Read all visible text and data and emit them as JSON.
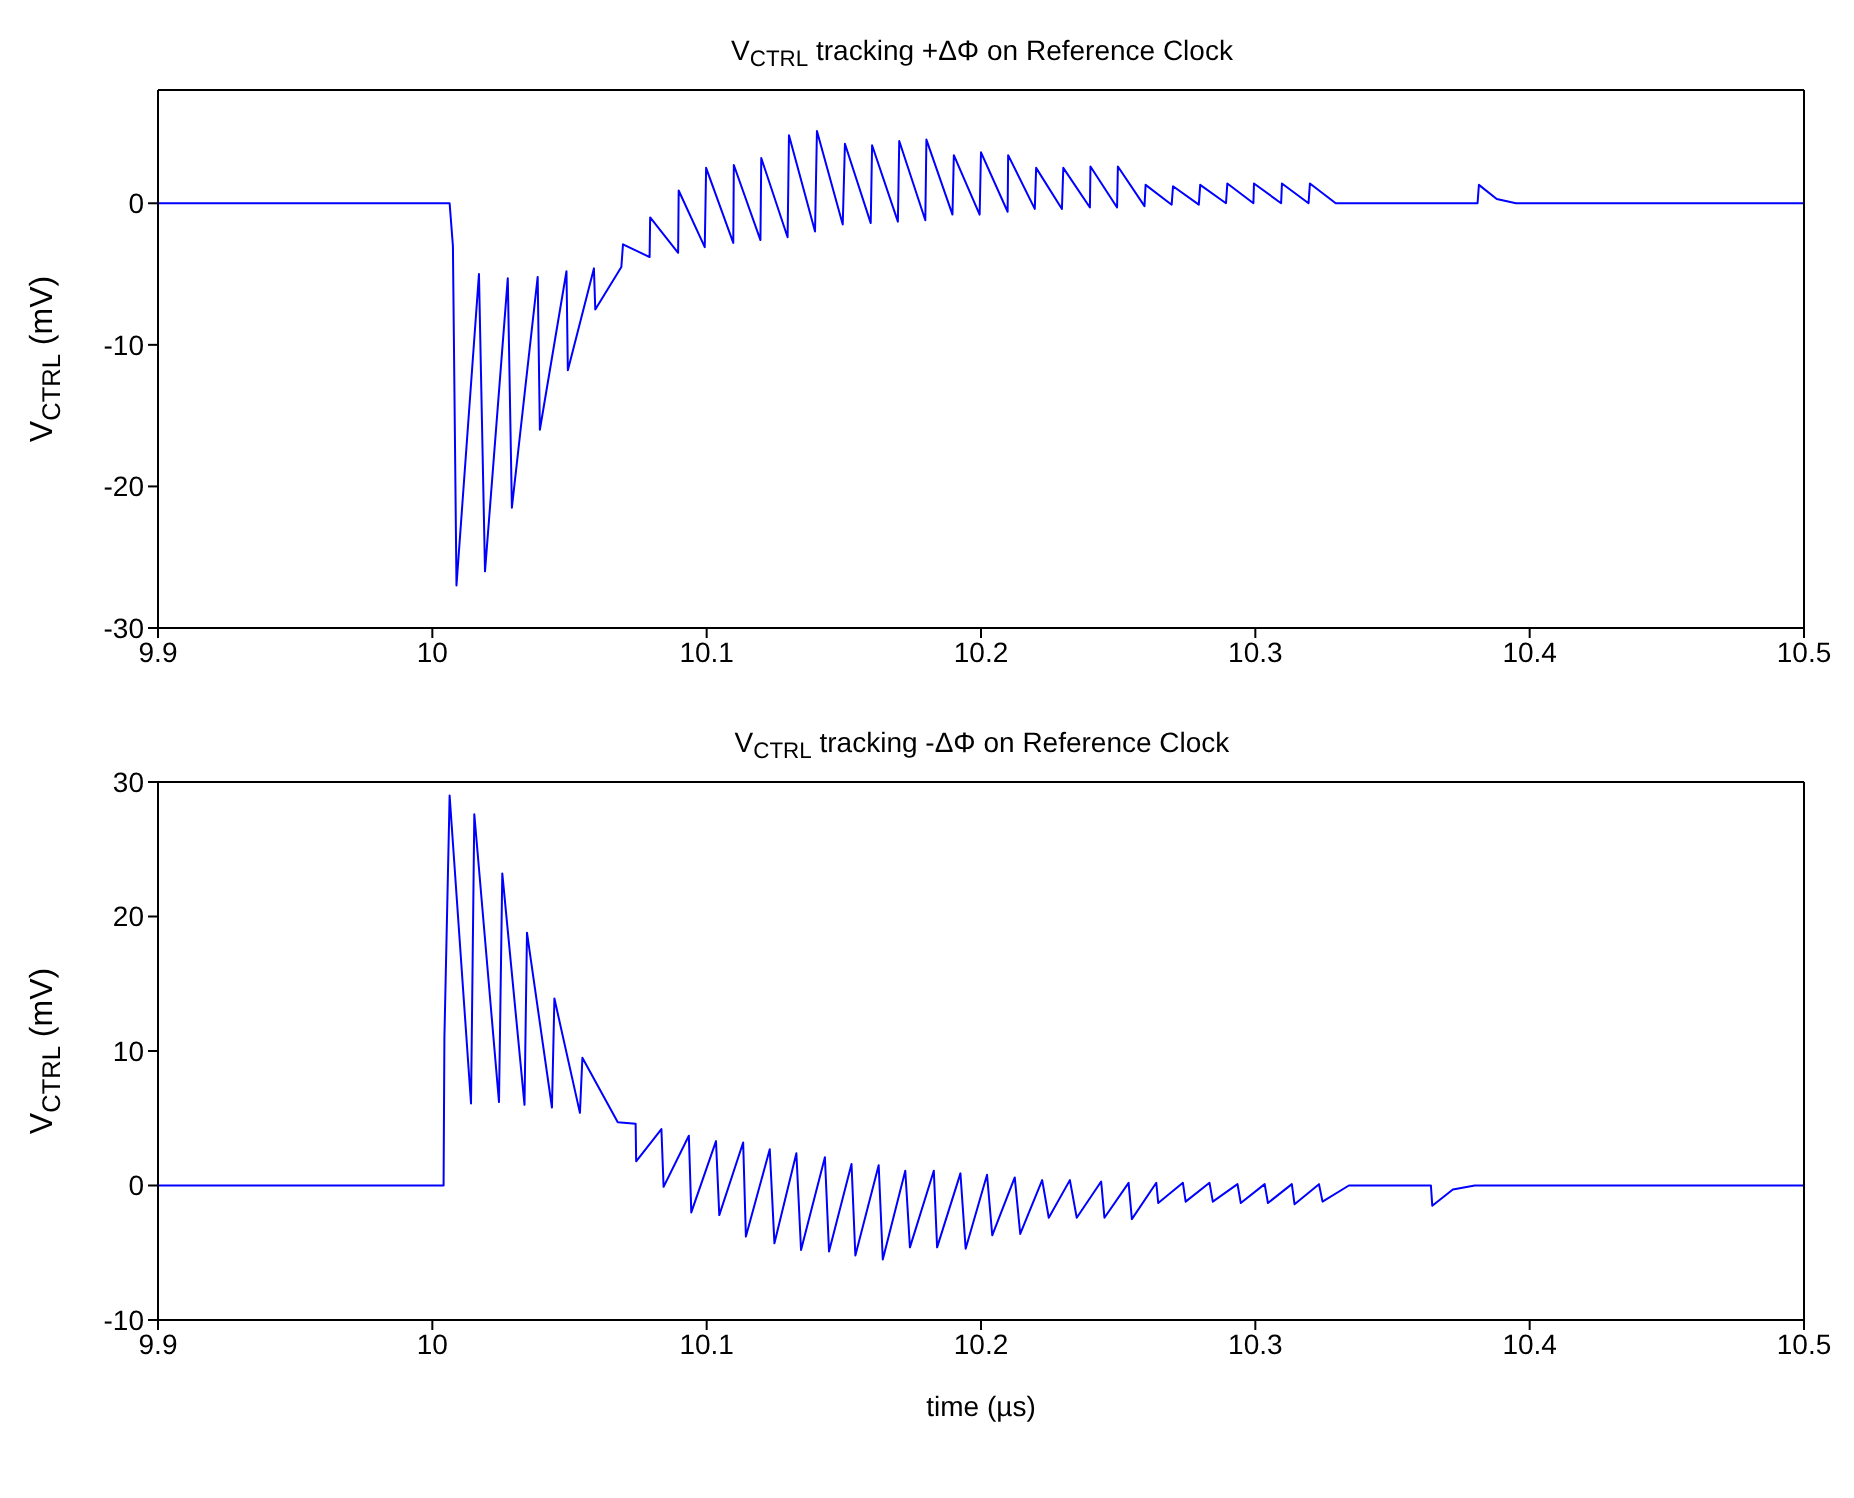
{
  "chart_data": [
    {
      "type": "line",
      "title": "V$_{CTRL}$ tracking +ΔΦ on Reference Clock",
      "ylabel": "V$_{CTRL}$ (mV)",
      "xlim": [
        9.9,
        10.5
      ],
      "xticks": [
        9.9,
        10,
        10.1,
        10.2,
        10.3,
        10.4,
        10.5
      ],
      "ylim": [
        -30,
        8
      ],
      "yticks": [
        -30,
        -20,
        -10,
        0
      ],
      "series": [
        {
          "color": "#0000ff",
          "x": [
            9.9,
            10.0063,
            10.0075,
            10.0088,
            10.017,
            10.0192,
            10.0275,
            10.029,
            10.0384,
            10.0392,
            10.0489,
            10.0494,
            10.0589,
            10.0594,
            10.0689,
            10.0695,
            10.0792,
            10.0794,
            10.0896,
            10.0898,
            10.0993,
            10.0998,
            10.1097,
            10.1099,
            10.1196,
            10.1199,
            10.1295,
            10.13,
            10.1395,
            10.1402,
            10.1496,
            10.1504,
            10.1598,
            10.1603,
            10.1697,
            10.1702,
            10.1797,
            10.1801,
            10.1896,
            10.1901,
            10.1995,
            10.2,
            10.2097,
            10.2099,
            10.2196,
            10.2201,
            10.2295,
            10.23,
            10.2397,
            10.2399,
            10.2496,
            10.2499,
            10.2596,
            10.26,
            10.2695,
            10.27,
            10.2794,
            10.2799,
            10.2893,
            10.2898,
            10.2993,
            10.2995,
            10.3094,
            10.3097,
            10.3194,
            10.3199,
            10.3293,
            10.3366,
            10.381,
            10.3815,
            10.388,
            10.395,
            10.5
          ],
          "values": [
            0,
            0,
            -3,
            -27,
            -5,
            -26,
            -5.3,
            -21.5,
            -5.2,
            -16,
            -4.8,
            -11.8,
            -4.6,
            -7.5,
            -4.5,
            -2.9,
            -3.8,
            -1,
            -3.5,
            0.9,
            -3.1,
            2.5,
            -2.8,
            2.7,
            -2.6,
            3.2,
            -2.4,
            4.8,
            -2,
            5.1,
            -1.5,
            4.2,
            -1.4,
            4.1,
            -1.3,
            4.4,
            -1.2,
            4.5,
            -0.8,
            3.4,
            -0.8,
            3.6,
            -0.6,
            3.4,
            -0.4,
            2.5,
            -0.4,
            2.5,
            -0.3,
            2.6,
            -0.3,
            2.6,
            -0.2,
            1.3,
            -0.1,
            1.2,
            -0.1,
            1.3,
            0,
            1.4,
            0,
            1.4,
            0,
            1.4,
            0,
            1.4,
            0,
            0,
            0,
            1.3,
            0.3,
            0,
            0
          ]
        }
      ]
    },
    {
      "type": "line",
      "title": "V$_{CTRL}$ tracking -ΔΦ on Reference Clock",
      "xlabel": "time (µs)",
      "ylabel": "V$_{CTRL}$ (mV)",
      "xlim": [
        9.9,
        10.5
      ],
      "xticks": [
        9.9,
        10,
        10.1,
        10.2,
        10.3,
        10.4,
        10.5
      ],
      "ylim": [
        -10,
        30
      ],
      "yticks": [
        -10,
        0,
        10,
        20,
        30
      ],
      "series": [
        {
          "color": "#0000ff",
          "x": [
            9.9,
            10.0041,
            10.0044,
            10.0063,
            10.0141,
            10.0153,
            10.0243,
            10.0255,
            10.0336,
            10.0345,
            10.0436,
            10.0445,
            10.0538,
            10.0547,
            10.0676,
            10.0741,
            10.0743,
            10.0835,
            10.0843,
            10.0935,
            10.0944,
            10.1034,
            10.1046,
            10.1133,
            10.1143,
            10.123,
            10.1247,
            10.1327,
            10.1344,
            10.1431,
            10.1446,
            10.1528,
            10.1542,
            10.1627,
            10.1642,
            10.1724,
            10.1741,
            10.1828,
            10.184,
            10.1925,
            10.1944,
            10.2022,
            10.2041,
            10.2123,
            10.2143,
            10.2223,
            10.2247,
            10.2324,
            10.2349,
            10.2438,
            10.245,
            10.2538,
            10.255,
            10.2639,
            10.2646,
            10.2736,
            10.2746,
            10.2833,
            10.2845,
            10.2935,
            10.2947,
            10.3034,
            10.3046,
            10.3133,
            10.3143,
            10.3232,
            10.3245,
            10.3341,
            10.364,
            10.3645,
            10.372,
            10.38,
            10.5
          ],
          "values": [
            0,
            0,
            11,
            29,
            6.1,
            27.6,
            6.2,
            23.2,
            6,
            18.8,
            5.8,
            13.9,
            5.4,
            9.5,
            4.7,
            4.6,
            1.8,
            4.2,
            -0.1,
            3.7,
            -2,
            3.3,
            -2.2,
            3.2,
            -3.8,
            2.7,
            -4.3,
            2.4,
            -4.8,
            2.1,
            -4.9,
            1.6,
            -5.2,
            1.5,
            -5.5,
            1.1,
            -4.6,
            1.1,
            -4.6,
            0.9,
            -4.7,
            0.8,
            -3.7,
            0.6,
            -3.6,
            0.4,
            -2.4,
            0.4,
            -2.4,
            0.3,
            -2.4,
            0.2,
            -2.5,
            0.2,
            -1.3,
            0.2,
            -1.2,
            0.2,
            -1.2,
            0.1,
            -1.3,
            0.1,
            -1.3,
            0.1,
            -1.4,
            0.1,
            -1.2,
            0,
            0,
            -1.5,
            -0.3,
            0,
            0
          ]
        }
      ]
    }
  ]
}
